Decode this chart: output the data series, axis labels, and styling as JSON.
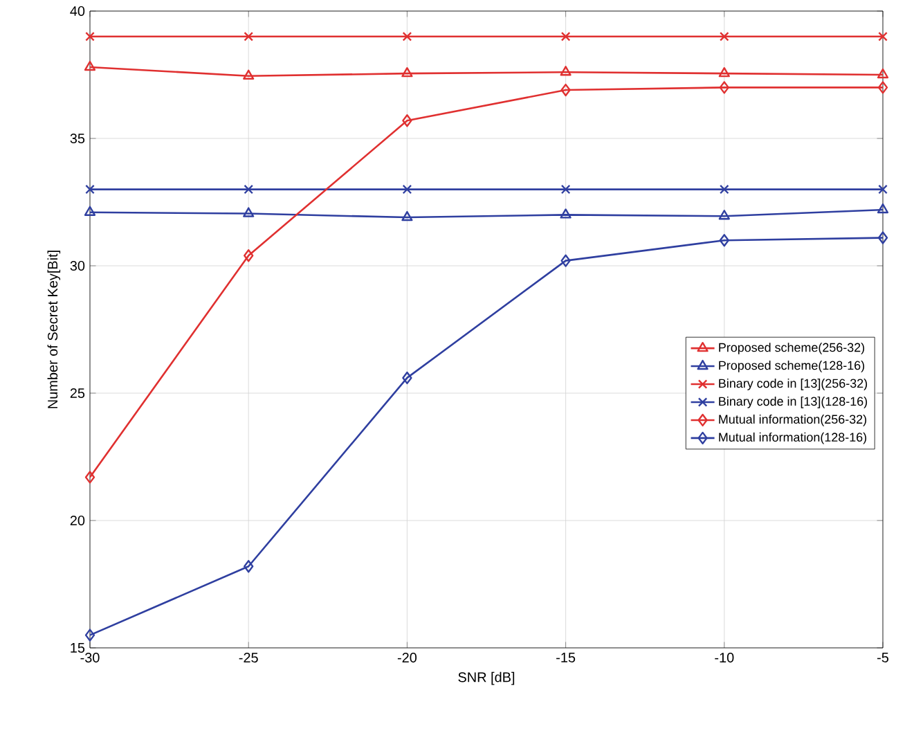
{
  "chart_data": {
    "type": "line",
    "xlabel": "SNR [dB]",
    "ylabel": "Number of Secret Key[Bit]",
    "x": [
      -30,
      -25,
      -20,
      -15,
      -10,
      -5
    ],
    "xlim": [
      -30,
      -5
    ],
    "xticks": [
      -30,
      -25,
      -20,
      -15,
      -10,
      -5
    ],
    "ylim": [
      15,
      40
    ],
    "yticks": [
      15,
      20,
      25,
      30,
      35,
      40
    ],
    "grid": true,
    "legend": "right",
    "line_style": "solid",
    "series": [
      {
        "name": "Proposed scheme(256-32)",
        "color": "#e03030",
        "marker": "triangle",
        "values": [
          37.8,
          37.45,
          37.55,
          37.6,
          37.55,
          37.5
        ]
      },
      {
        "name": "Proposed scheme(128-16)",
        "color": "#2f3fa0",
        "marker": "triangle",
        "values": [
          32.1,
          32.05,
          31.9,
          32.0,
          31.95,
          32.2
        ]
      },
      {
        "name": "Binary code in [13](256-32)",
        "color": "#e03030",
        "marker": "cross",
        "values": [
          39,
          39,
          39,
          39,
          39,
          39
        ]
      },
      {
        "name": "Binary code in [13](128-16)",
        "color": "#2f3fa0",
        "marker": "cross",
        "values": [
          33,
          33,
          33,
          33,
          33,
          33
        ]
      },
      {
        "name": "Mutual information(256-32)",
        "color": "#e03030",
        "marker": "diamond",
        "values": [
          21.7,
          30.4,
          35.7,
          36.9,
          37.0,
          37.0
        ]
      },
      {
        "name": "Mutual information(128-16)",
        "color": "#2f3fa0",
        "marker": "diamond",
        "values": [
          15.5,
          18.2,
          25.6,
          30.2,
          31.0,
          31.1
        ]
      }
    ]
  }
}
